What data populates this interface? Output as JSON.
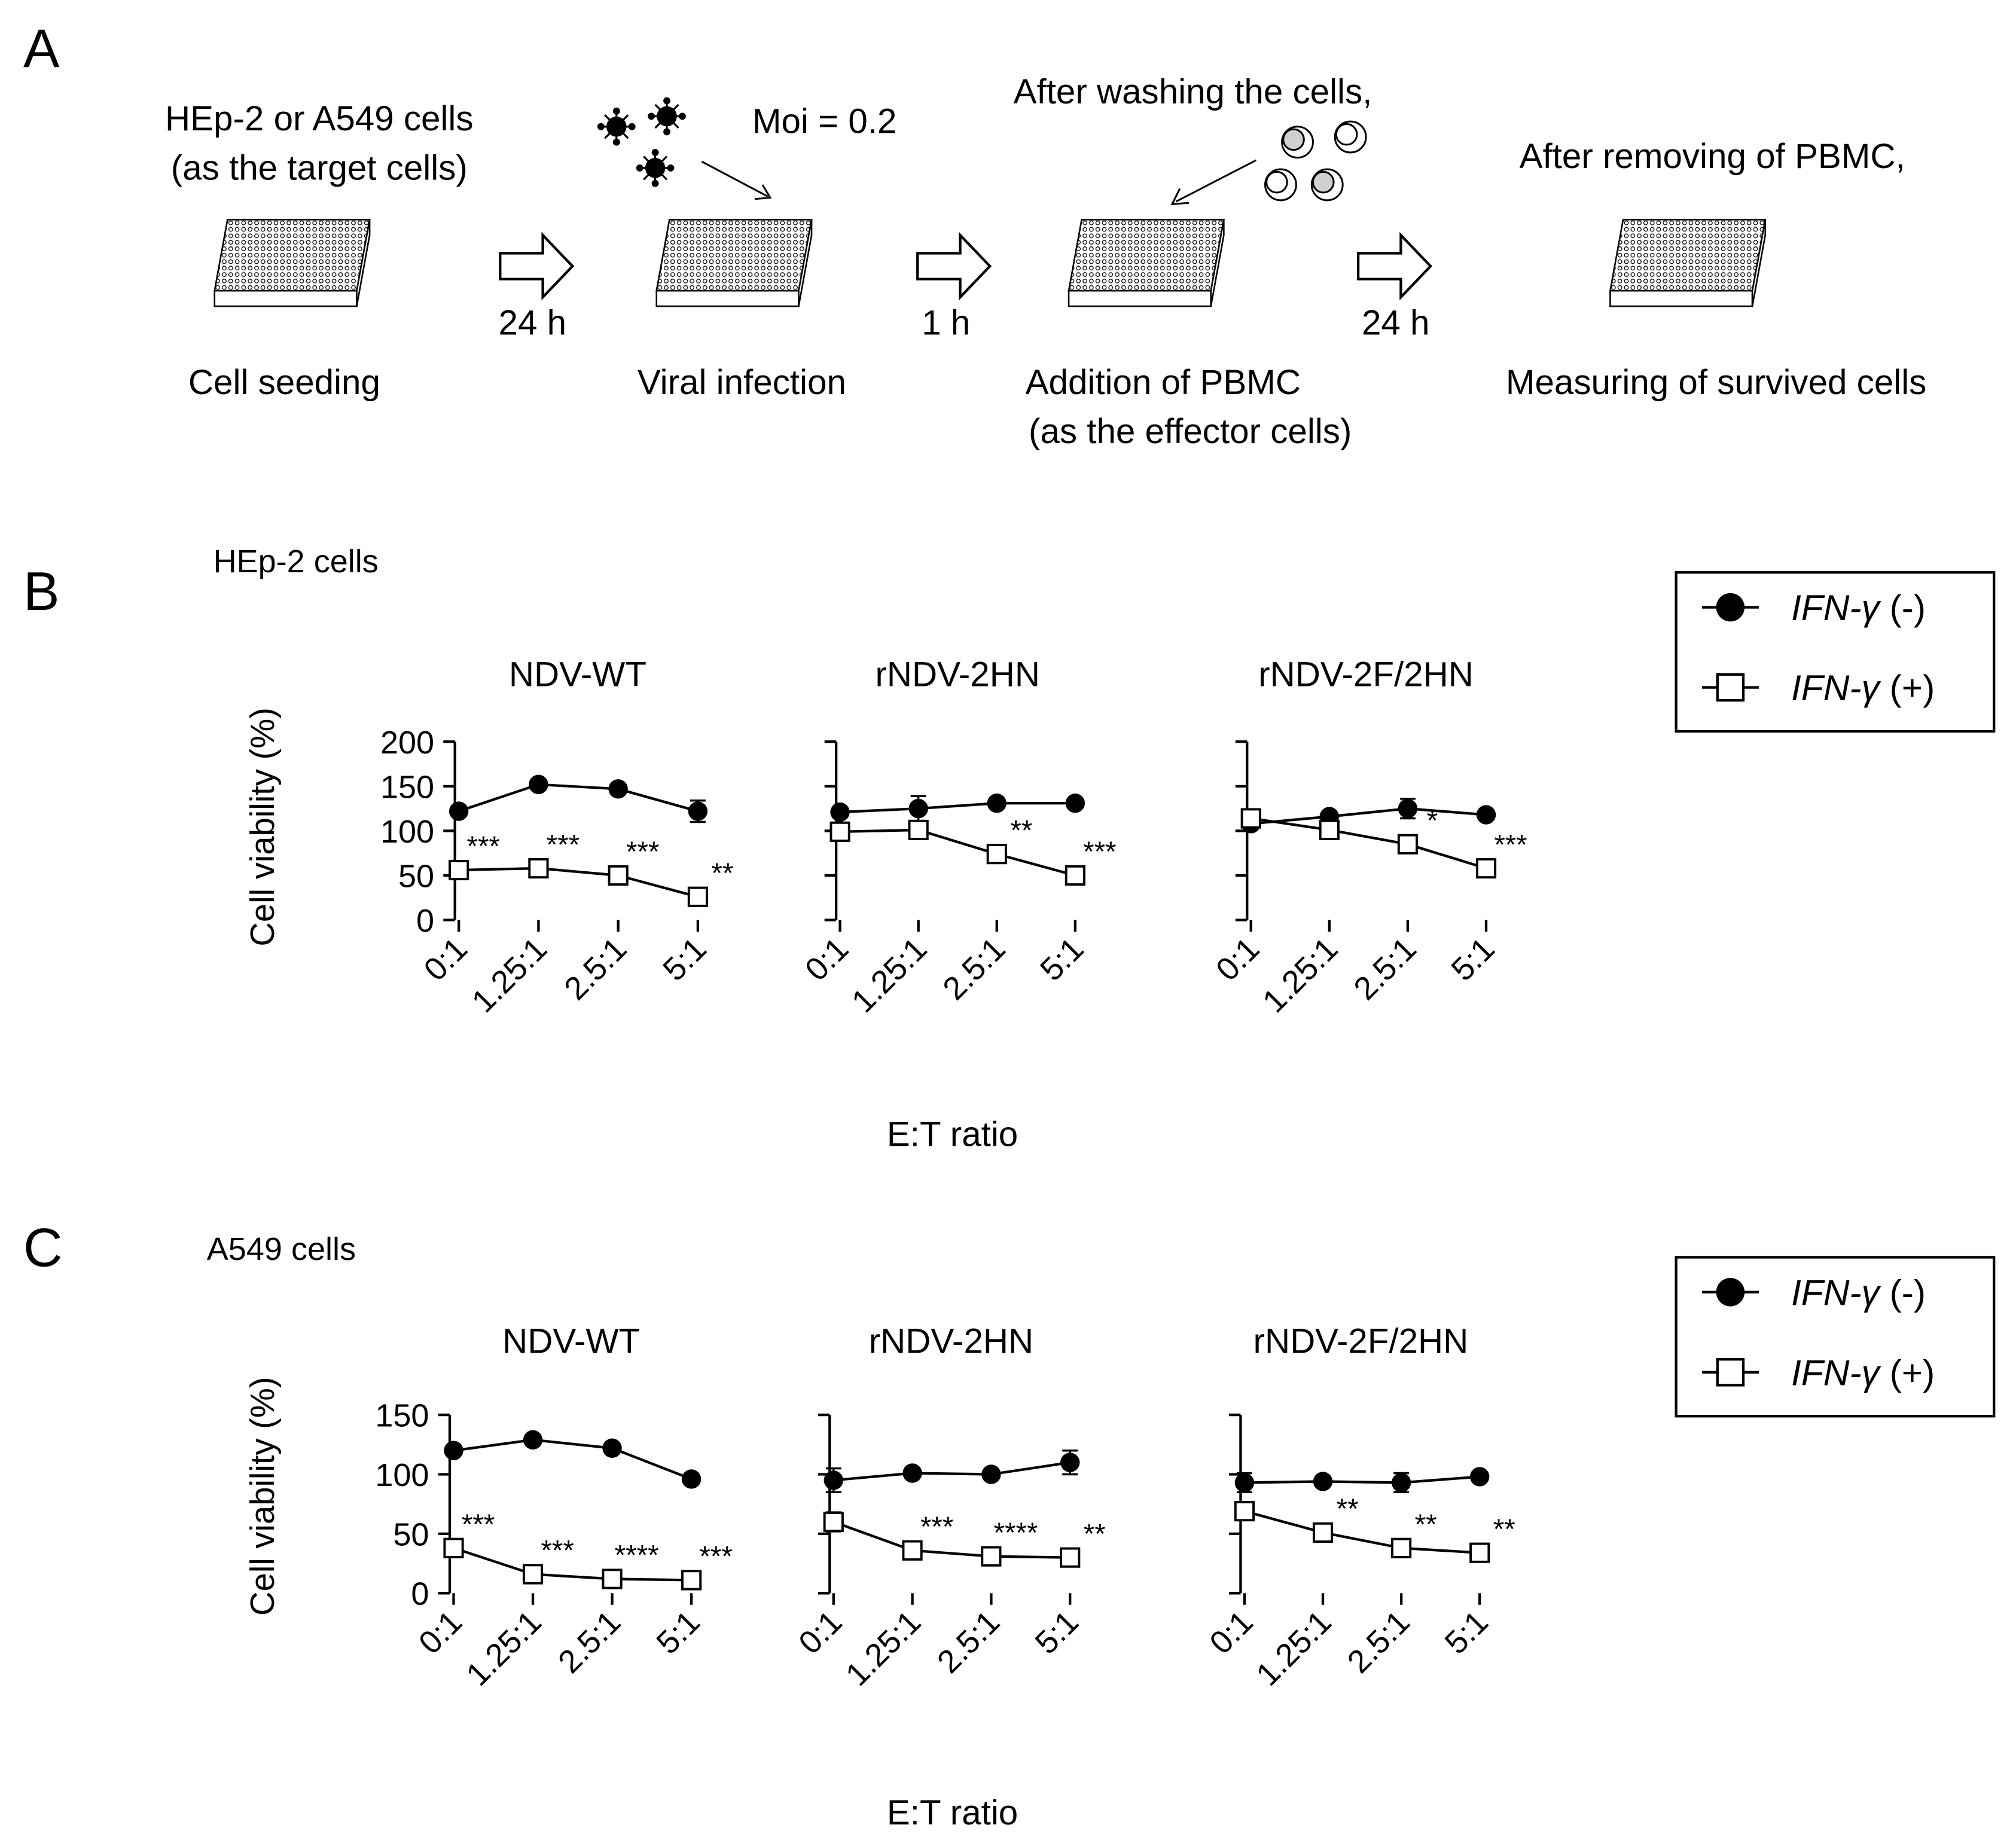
{
  "panel_labels": {
    "a": "A",
    "b": "B",
    "c": "C"
  },
  "schematic": {
    "steps": [
      {
        "caption": "Cell seeding",
        "note": [
          "HEp-2 or A549 cells",
          "(as the target cells)"
        ]
      },
      {
        "caption": "Viral infection",
        "note": [
          "Moi = 0.2"
        ]
      },
      {
        "caption": [
          "Addition of PBMC",
          "(as the effector cells)"
        ],
        "note": [
          "After washing the cells,"
        ]
      },
      {
        "caption": "Measuring of survived cells",
        "note": [
          "After removing of PBMC,"
        ]
      }
    ],
    "arrows": [
      "24 h",
      "1 h",
      "24 h"
    ]
  },
  "legend": {
    "series_neg": {
      "prefix": "IFN-γ",
      "suffix": " (-)"
    },
    "series_pos": {
      "prefix": "IFN-γ",
      "suffix": " (+)"
    }
  },
  "chart_data": [
    {
      "type": "line",
      "group": "HEp-2 cells",
      "title": "NDV-WT",
      "ylabel": "Cell viability (%)",
      "xlabel": "E:T ratio",
      "categories": [
        "0:1",
        "1.25:1",
        "2.5:1",
        "5:1"
      ],
      "yticks": [
        0,
        50,
        100,
        150,
        200
      ],
      "ylim": [
        0,
        200
      ],
      "series": [
        {
          "name": "IFN-γ (-)",
          "marker": "filled-circle",
          "values": [
            122,
            152,
            147,
            122
          ],
          "errors": [
            0,
            0,
            0,
            12
          ]
        },
        {
          "name": "IFN-γ (+)",
          "marker": "open-square",
          "values": [
            56,
            58,
            50,
            26
          ],
          "errors": [
            0,
            0,
            0,
            0
          ]
        }
      ],
      "significance": [
        "***",
        "***",
        "***",
        "**"
      ]
    },
    {
      "type": "line",
      "group": "HEp-2 cells",
      "title": "rNDV-2HN",
      "categories": [
        "0:1",
        "1.25:1",
        "2.5:1",
        "5:1"
      ],
      "ylim": [
        0,
        200
      ],
      "series": [
        {
          "name": "IFN-γ (-)",
          "marker": "filled-circle",
          "values": [
            121,
            125,
            131,
            131
          ],
          "errors": [
            0,
            14,
            0,
            0
          ]
        },
        {
          "name": "IFN-γ (+)",
          "marker": "open-square",
          "values": [
            99,
            101,
            74,
            50
          ],
          "errors": [
            0,
            0,
            0,
            0
          ]
        }
      ],
      "significance": [
        "",
        "",
        "**",
        "***"
      ]
    },
    {
      "type": "line",
      "group": "HEp-2 cells",
      "title": "rNDV-2F/2HN",
      "categories": [
        "0:1",
        "1.25:1",
        "2.5:1",
        "5:1"
      ],
      "ylim": [
        0,
        200
      ],
      "series": [
        {
          "name": "IFN-γ (-)",
          "marker": "filled-circle",
          "values": [
            108,
            116,
            125,
            118
          ],
          "errors": [
            0,
            0,
            11,
            0
          ]
        },
        {
          "name": "IFN-γ (+)",
          "marker": "open-square",
          "values": [
            114,
            101,
            85,
            58
          ],
          "errors": [
            0,
            0,
            0,
            0
          ]
        }
      ],
      "significance": [
        "",
        "",
        "*",
        "***"
      ]
    },
    {
      "type": "line",
      "group": "A549 cells",
      "title": "NDV-WT",
      "ylabel": "Cell viability (%)",
      "xlabel": "E:T ratio",
      "categories": [
        "0:1",
        "1.25:1",
        "2.5:1",
        "5:1"
      ],
      "yticks": [
        0,
        50,
        100,
        150
      ],
      "ylim": [
        0,
        150
      ],
      "series": [
        {
          "name": "IFN-γ (-)",
          "marker": "filled-circle",
          "values": [
            120,
            129,
            122,
            96
          ],
          "errors": [
            0,
            0,
            0,
            0
          ]
        },
        {
          "name": "IFN-γ (+)",
          "marker": "open-square",
          "values": [
            38,
            16,
            12,
            11
          ],
          "errors": [
            0,
            0,
            0,
            0
          ]
        }
      ],
      "significance": [
        "***",
        "***",
        "****",
        "***"
      ]
    },
    {
      "type": "line",
      "group": "A549 cells",
      "title": "rNDV-2HN",
      "categories": [
        "0:1",
        "1.25:1",
        "2.5:1",
        "5:1"
      ],
      "ylim": [
        0,
        150
      ],
      "series": [
        {
          "name": "IFN-γ (-)",
          "marker": "filled-circle",
          "values": [
            95,
            101,
            100,
            110
          ],
          "errors": [
            10,
            0,
            0,
            10
          ]
        },
        {
          "name": "IFN-γ (+)",
          "marker": "open-square",
          "values": [
            60,
            36,
            31,
            30
          ],
          "errors": [
            8,
            0,
            0,
            0
          ]
        }
      ],
      "significance": [
        "",
        "***",
        "****",
        "**"
      ]
    },
    {
      "type": "line",
      "group": "A549 cells",
      "title": "rNDV-2F/2HN",
      "categories": [
        "0:1",
        "1.25:1",
        "2.5:1",
        "5:1"
      ],
      "ylim": [
        0,
        150
      ],
      "series": [
        {
          "name": "IFN-γ (-)",
          "marker": "filled-circle",
          "values": [
            93,
            94,
            93,
            98
          ],
          "errors": [
            8,
            0,
            8,
            0
          ]
        },
        {
          "name": "IFN-γ (+)",
          "marker": "open-square",
          "values": [
            69,
            51,
            38,
            34
          ],
          "errors": [
            0,
            0,
            0,
            0
          ]
        }
      ],
      "significance": [
        "",
        "**",
        "**",
        "**"
      ]
    }
  ]
}
